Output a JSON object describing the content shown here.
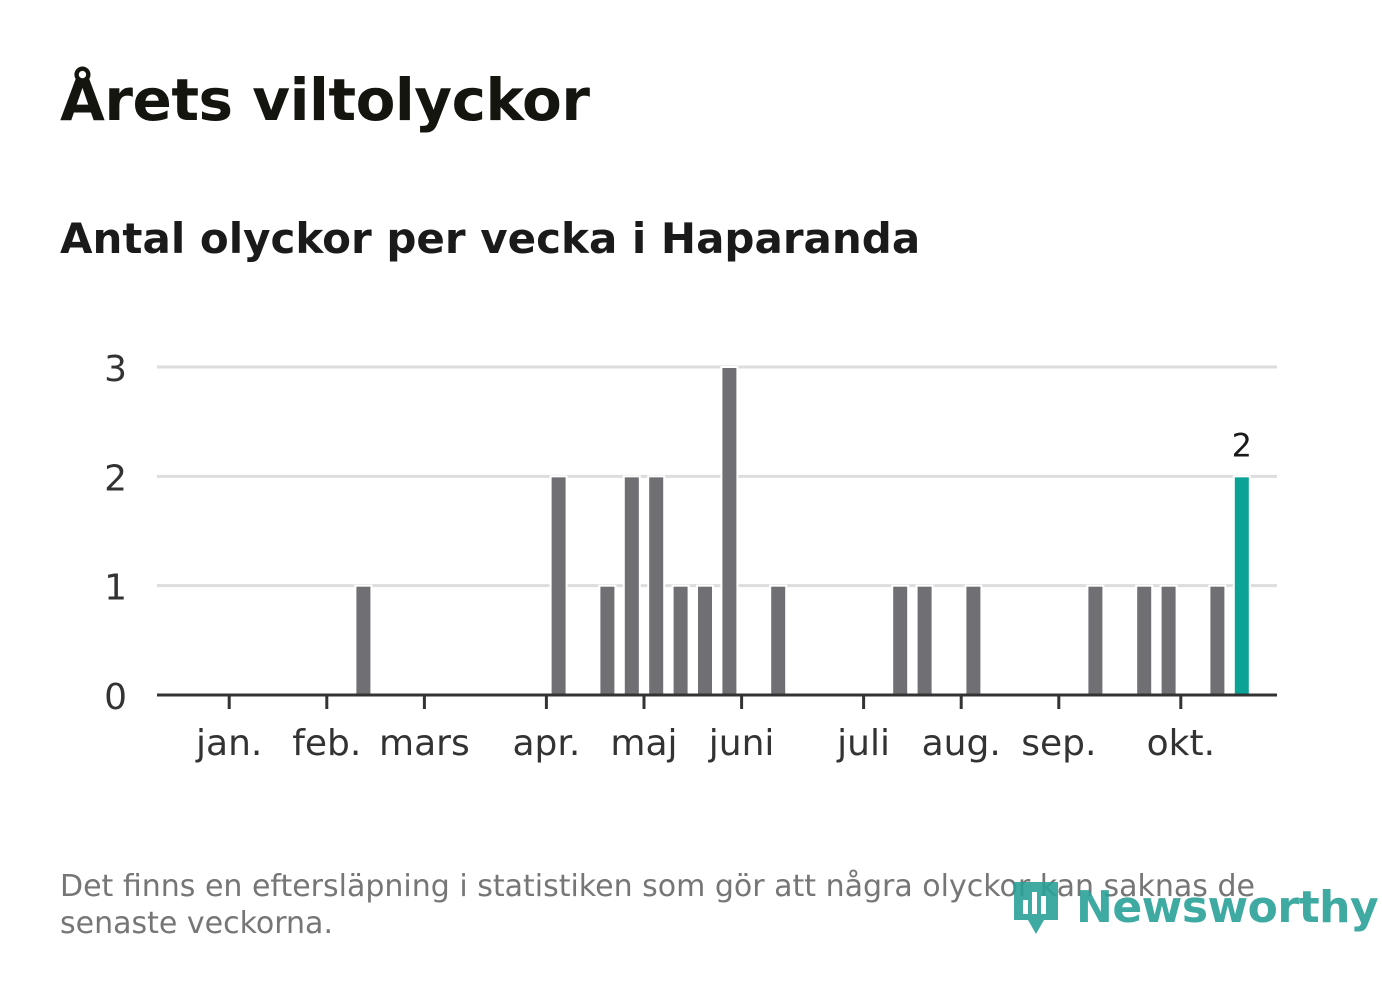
{
  "title": "Årets viltolyckor",
  "subtitle": "Antal olyckor per vecka i Haparanda",
  "footnote": "Det finns en eftersläpning i statistiken som gör att några olyckor kan saknas de senaste veckorna.",
  "brand": {
    "name": "Newsworthy",
    "color": "#2aa198"
  },
  "chart_data": {
    "type": "bar",
    "title": "Antal olyckor per vecka i Haparanda",
    "xlabel": "",
    "ylabel": "",
    "ylim": [
      0,
      3
    ],
    "yticks": [
      0,
      1,
      2,
      3
    ],
    "grid": true,
    "bar_color": "#707074",
    "highlight_color": "#0aa396",
    "highlight_index": 42,
    "highlight_label": "2",
    "weeks": [
      1,
      2,
      3,
      4,
      5,
      6,
      7,
      8,
      9,
      10,
      11,
      12,
      13,
      14,
      15,
      16,
      17,
      18,
      19,
      20,
      21,
      22,
      23,
      24,
      25,
      26,
      27,
      28,
      29,
      30,
      31,
      32,
      33,
      34,
      35,
      36,
      37,
      38,
      39,
      40,
      41,
      42,
      43
    ],
    "values": [
      0,
      0,
      0,
      0,
      0,
      0,
      1,
      0,
      0,
      0,
      0,
      0,
      0,
      0,
      2,
      0,
      1,
      2,
      2,
      1,
      1,
      3,
      0,
      1,
      0,
      0,
      0,
      0,
      1,
      1,
      0,
      1,
      0,
      0,
      0,
      0,
      1,
      0,
      1,
      1,
      0,
      1,
      2
    ],
    "month_labels": [
      {
        "label": "jan.",
        "week": 1.5
      },
      {
        "label": "feb.",
        "week": 5.5
      },
      {
        "label": "mars",
        "week": 9.5
      },
      {
        "label": "apr.",
        "week": 14.5
      },
      {
        "label": "maj",
        "week": 18.5
      },
      {
        "label": "juni",
        "week": 22.5
      },
      {
        "label": "juli",
        "week": 27.5
      },
      {
        "label": "aug.",
        "week": 31.5
      },
      {
        "label": "sep.",
        "week": 35.5
      },
      {
        "label": "okt.",
        "week": 40.5
      }
    ]
  }
}
